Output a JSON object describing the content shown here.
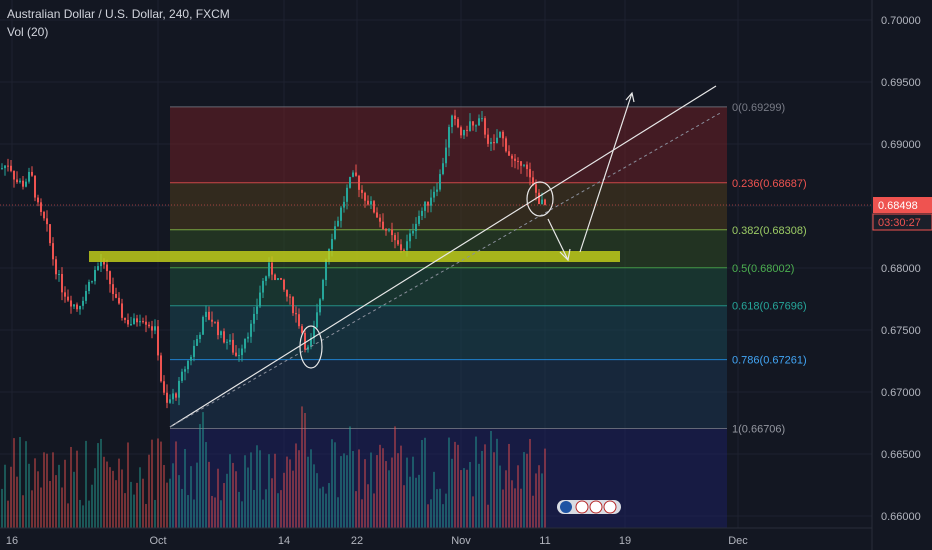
{
  "header": {
    "title": "Australian Dollar / U.S. Dollar, 240, FXCM",
    "indicator": "Vol (20)"
  },
  "colors": {
    "background": "#131722",
    "up": "#26a69a",
    "down": "#ef5350",
    "zone": "#c5d11a",
    "price_badge": "#ef5350"
  },
  "chart_data": {
    "type": "candlestick",
    "y_ticks": [
      "0.70000",
      "0.69500",
      "0.69000",
      "0.68500",
      "0.68000",
      "0.67500",
      "0.67000",
      "0.66500",
      "0.66000"
    ],
    "ylim": [
      0.6597,
      0.7012
    ],
    "x_ticks": [
      "16",
      "Oct",
      "14",
      "22",
      "Nov",
      "11",
      "19",
      "Dec"
    ],
    "last_price": "0.68498",
    "countdown": "03:30:27",
    "fib_levels": [
      {
        "ratio": "0",
        "value": "0.69299"
      },
      {
        "ratio": "0.236",
        "value": "0.68687"
      },
      {
        "ratio": "0.382",
        "value": "0.68308"
      },
      {
        "ratio": "0.5",
        "value": "0.68002"
      },
      {
        "ratio": "0.618",
        "value": "0.67696"
      },
      {
        "ratio": "0.786",
        "value": "0.67261"
      },
      {
        "ratio": "1",
        "value": "0.66706"
      }
    ],
    "price_path": [
      [
        0,
        0.688
      ],
      [
        8,
        0.6885
      ],
      [
        15,
        0.687
      ],
      [
        22,
        0.6868
      ],
      [
        30,
        0.6876
      ],
      [
        38,
        0.6845
      ],
      [
        45,
        0.6835
      ],
      [
        52,
        0.6808
      ],
      [
        60,
        0.6785
      ],
      [
        68,
        0.6775
      ],
      [
        76,
        0.6768
      ],
      [
        84,
        0.678
      ],
      [
        92,
        0.6795
      ],
      [
        100,
        0.6805
      ],
      [
        108,
        0.679
      ],
      [
        116,
        0.677
      ],
      [
        124,
        0.6758
      ],
      [
        132,
        0.6755
      ],
      [
        140,
        0.6762
      ],
      [
        148,
        0.6755
      ],
      [
        155,
        0.6748
      ],
      [
        160,
        0.671
      ],
      [
        165,
        0.6688
      ],
      [
        170,
        0.6695
      ],
      [
        176,
        0.67
      ],
      [
        183,
        0.6718
      ],
      [
        190,
        0.673
      ],
      [
        197,
        0.6745
      ],
      [
        204,
        0.6762
      ],
      [
        212,
        0.6758
      ],
      [
        220,
        0.6745
      ],
      [
        228,
        0.674
      ],
      [
        236,
        0.6728
      ],
      [
        244,
        0.6745
      ],
      [
        252,
        0.6755
      ],
      [
        260,
        0.6785
      ],
      [
        268,
        0.68
      ],
      [
        276,
        0.6792
      ],
      [
        284,
        0.678
      ],
      [
        292,
        0.6768
      ],
      [
        300,
        0.6752
      ],
      [
        306,
        0.6732
      ],
      [
        312,
        0.6745
      ],
      [
        318,
        0.677
      ],
      [
        324,
        0.6805
      ],
      [
        330,
        0.6825
      ],
      [
        336,
        0.6838
      ],
      [
        342,
        0.6852
      ],
      [
        348,
        0.6868
      ],
      [
        354,
        0.6875
      ],
      [
        360,
        0.6862
      ],
      [
        366,
        0.6855
      ],
      [
        372,
        0.6848
      ],
      [
        378,
        0.684
      ],
      [
        384,
        0.6832
      ],
      [
        390,
        0.6825
      ],
      [
        396,
        0.6818
      ],
      [
        402,
        0.6815
      ],
      [
        408,
        0.6822
      ],
      [
        414,
        0.6838
      ],
      [
        420,
        0.6845
      ],
      [
        426,
        0.6852
      ],
      [
        432,
        0.6862
      ],
      [
        438,
        0.687
      ],
      [
        444,
        0.6895
      ],
      [
        450,
        0.692
      ],
      [
        456,
        0.6915
      ],
      [
        462,
        0.6905
      ],
      [
        468,
        0.6918
      ],
      [
        474,
        0.6912
      ],
      [
        480,
        0.692
      ],
      [
        486,
        0.6905
      ],
      [
        492,
        0.6895
      ],
      [
        498,
        0.691
      ],
      [
        504,
        0.69
      ],
      [
        510,
        0.6888
      ],
      [
        516,
        0.688
      ],
      [
        522,
        0.689
      ],
      [
        528,
        0.6872
      ],
      [
        534,
        0.6862
      ],
      [
        540,
        0.6852
      ],
      [
        546,
        0.6849
      ]
    ]
  }
}
